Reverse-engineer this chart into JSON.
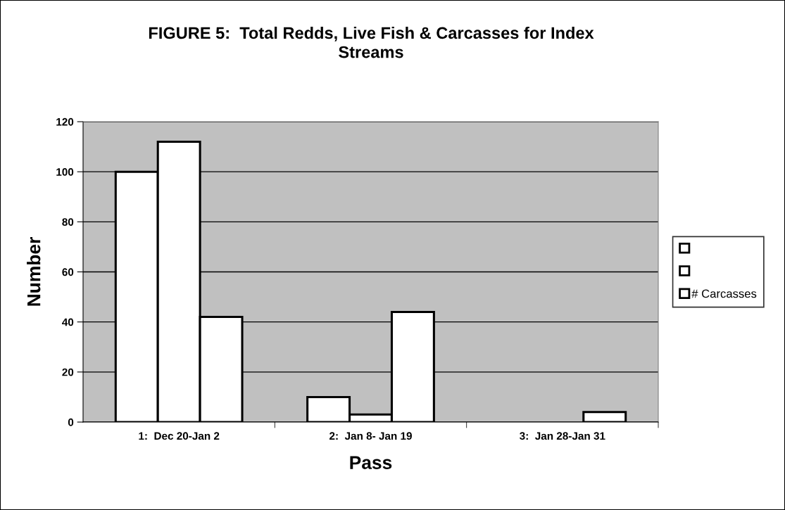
{
  "chart_data": {
    "type": "bar",
    "title": "FIGURE 5:  Total Redds, Live Fish & Carcasses for Index Streams",
    "xlabel": "Pass",
    "ylabel": "Number",
    "categories": [
      "1:  Dec 20-Jan 2",
      "2:  Jan 8- Jan 19",
      "3:  Jan 28-Jan 31"
    ],
    "series": [
      {
        "color": "#ffffff",
        "values": [
          100,
          10,
          0
        ]
      },
      {
        "color": "#ffffff",
        "values": [
          112,
          3,
          0
        ]
      },
      {
        "name": "# Carcasses",
        "color": "#ffffff",
        "values": [
          42,
          44,
          4
        ]
      }
    ],
    "ylim": [
      0,
      120
    ],
    "yticks": [
      0,
      20,
      40,
      60,
      80,
      100,
      120
    ],
    "grid": "y",
    "legend": "right"
  }
}
